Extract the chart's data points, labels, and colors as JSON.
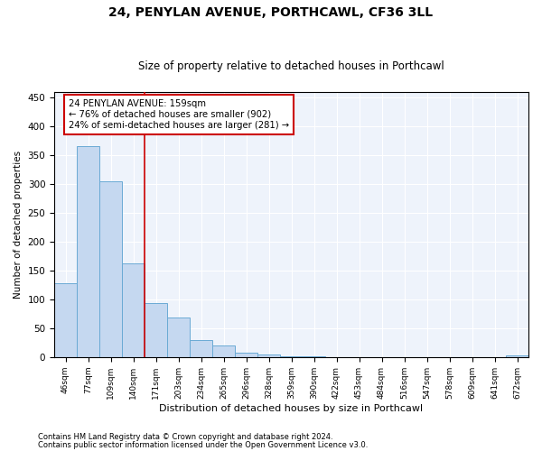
{
  "title1": "24, PENYLAN AVENUE, PORTHCAWL, CF36 3LL",
  "title2": "Size of property relative to detached houses in Porthcawl",
  "xlabel": "Distribution of detached houses by size in Porthcawl",
  "ylabel": "Number of detached properties",
  "footnote1": "Contains HM Land Registry data © Crown copyright and database right 2024.",
  "footnote2": "Contains public sector information licensed under the Open Government Licence v3.0.",
  "bin_labels": [
    "46sqm",
    "77sqm",
    "109sqm",
    "140sqm",
    "171sqm",
    "203sqm",
    "234sqm",
    "265sqm",
    "296sqm",
    "328sqm",
    "359sqm",
    "390sqm",
    "422sqm",
    "453sqm",
    "484sqm",
    "516sqm",
    "547sqm",
    "578sqm",
    "609sqm",
    "641sqm",
    "672sqm"
  ],
  "bar_values": [
    128,
    365,
    305,
    163,
    93,
    68,
    30,
    20,
    8,
    5,
    2,
    1,
    0,
    0,
    0,
    0,
    0,
    0,
    0,
    0,
    3
  ],
  "bar_color": "#c5d8f0",
  "bar_edge_color": "#6aaad4",
  "vline_color": "#cc0000",
  "annotation_line1": "24 PENYLAN AVENUE: 159sqm",
  "annotation_line2": "← 76% of detached houses are smaller (902)",
  "annotation_line3": "24% of semi-detached houses are larger (281) →",
  "annotation_box_color": "#cc0000",
  "ylim": [
    0,
    460
  ],
  "vline_bin_index": 4.0,
  "property_bin_index": 3.7
}
